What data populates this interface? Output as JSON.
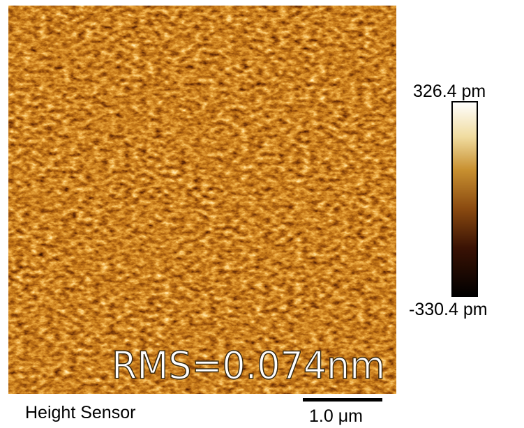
{
  "image": {
    "rms_label": "RMS=0.074nm",
    "channel_label": "Height Sensor",
    "scale_bar_label": "1.0 μm"
  },
  "colorbar": {
    "max_label": "326.4 pm",
    "min_label": "-330.4 pm"
  }
}
